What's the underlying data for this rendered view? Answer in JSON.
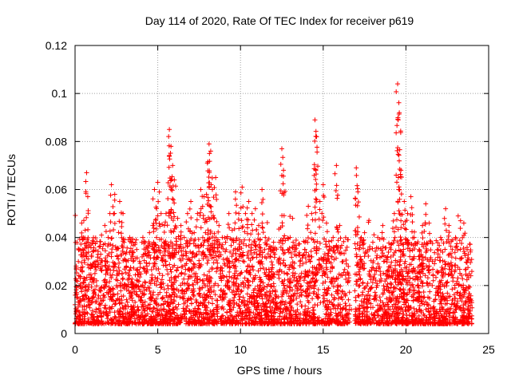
{
  "chart_data": {
    "type": "scatter",
    "title": "Day 114 of 2020, Rate Of TEC Index for receiver p619",
    "xlabel": "GPS time / hours",
    "ylabel": "ROTI / TECUs",
    "xlim": [
      0,
      25
    ],
    "ylim": [
      0,
      0.12
    ],
    "xticks": [
      "0",
      "5",
      "10",
      "15",
      "20",
      "25"
    ],
    "yticks": [
      "0",
      "0.02",
      "0.04",
      "0.06",
      "0.08",
      "0.1",
      "0.12"
    ],
    "grid": true,
    "marker": "+",
    "series_color": "#ff0000",
    "series": [
      {
        "name": "ROTI",
        "x": [
          0.0,
          0.2,
          0.4,
          0.5,
          0.7,
          0.8,
          1.0,
          1.2,
          1.4,
          1.6,
          1.8,
          2.0,
          2.2,
          2.4,
          2.5,
          2.7,
          2.9,
          3.1,
          3.3,
          3.5,
          3.7,
          3.9,
          4.1,
          4.3,
          4.5,
          4.7,
          4.8,
          5.0,
          5.2,
          5.4,
          5.5,
          5.7,
          5.8,
          5.9,
          6.0,
          6.2,
          6.4,
          6.6,
          6.8,
          7.0,
          7.2,
          7.4,
          7.6,
          7.8,
          8.0,
          8.1,
          8.2,
          8.3,
          8.5,
          8.7,
          8.9,
          9.1,
          9.3,
          9.5,
          9.7,
          9.9,
          10.1,
          10.3,
          10.5,
          10.7,
          10.9,
          11.1,
          11.3,
          11.5,
          11.8,
          12.0,
          12.3,
          12.5,
          12.6,
          12.8,
          13.0,
          13.3,
          13.6,
          13.9,
          14.1,
          14.3,
          14.5,
          14.6,
          14.8,
          15.0,
          15.2,
          15.4,
          15.6,
          15.8,
          16.0,
          16.2,
          16.5,
          16.7,
          17.0,
          17.1,
          17.3,
          17.5,
          17.8,
          18.0,
          18.3,
          18.6,
          18.9,
          19.1,
          19.3,
          19.5,
          19.6,
          19.7,
          19.9,
          20.1,
          20.3,
          20.5,
          20.8,
          21.0,
          21.2,
          21.4,
          21.6,
          21.9,
          22.1,
          22.4,
          22.6,
          22.8,
          23.0,
          23.3,
          23.5,
          23.7,
          23.9,
          0.1,
          0.3,
          0.6,
          0.9,
          1.3,
          1.7,
          2.1,
          2.6,
          3.0,
          3.4,
          3.8,
          4.2,
          4.6,
          5.1,
          5.6,
          6.1,
          6.5,
          6.9,
          7.3,
          7.7,
          8.0,
          8.4,
          8.8,
          9.2,
          9.6,
          10.0,
          10.4,
          10.8,
          11.2,
          11.6,
          12.1,
          12.7,
          13.2,
          13.7,
          14.2,
          14.7,
          15.3,
          15.9,
          16.4,
          17.2,
          17.7,
          18.2,
          18.7,
          19.2,
          19.8,
          20.2,
          20.7,
          21.3,
          21.8,
          22.3,
          22.9,
          23.4,
          23.8
        ],
        "y": [
          0.012,
          0.03,
          0.046,
          0.04,
          0.067,
          0.038,
          0.032,
          0.025,
          0.028,
          0.041,
          0.045,
          0.04,
          0.062,
          0.058,
          0.035,
          0.055,
          0.05,
          0.03,
          0.04,
          0.038,
          0.039,
          0.03,
          0.04,
          0.036,
          0.042,
          0.045,
          0.06,
          0.063,
          0.05,
          0.045,
          0.05,
          0.085,
          0.078,
          0.07,
          0.064,
          0.048,
          0.045,
          0.04,
          0.05,
          0.055,
          0.042,
          0.05,
          0.06,
          0.057,
          0.071,
          0.079,
          0.076,
          0.06,
          0.065,
          0.045,
          0.04,
          0.038,
          0.05,
          0.043,
          0.059,
          0.05,
          0.061,
          0.05,
          0.055,
          0.05,
          0.052,
          0.045,
          0.06,
          0.04,
          0.035,
          0.038,
          0.03,
          0.077,
          0.068,
          0.025,
          0.04,
          0.035,
          0.03,
          0.038,
          0.053,
          0.05,
          0.089,
          0.082,
          0.055,
          0.062,
          0.046,
          0.035,
          0.04,
          0.07,
          0.045,
          0.03,
          0.025,
          0.01,
          0.069,
          0.059,
          0.04,
          0.042,
          0.035,
          0.038,
          0.04,
          0.045,
          0.032,
          0.035,
          0.05,
          0.104,
          0.092,
          0.068,
          0.055,
          0.05,
          0.057,
          0.04,
          0.035,
          0.045,
          0.054,
          0.046,
          0.03,
          0.035,
          0.04,
          0.052,
          0.045,
          0.035,
          0.04,
          0.047,
          0.046,
          0.035,
          0.034,
          0.015,
          0.02,
          0.018,
          0.012,
          0.022,
          0.016,
          0.018,
          0.014,
          0.02,
          0.016,
          0.022,
          0.018,
          0.015,
          0.025,
          0.02,
          0.022,
          0.018,
          0.02,
          0.025,
          0.022,
          0.024,
          0.02,
          0.018,
          0.022,
          0.02,
          0.025,
          0.022,
          0.018,
          0.02,
          0.016,
          0.012,
          0.018,
          0.014,
          0.016,
          0.02,
          0.015,
          0.018,
          0.012,
          0.01,
          0.02,
          0.016,
          0.014,
          0.018,
          0.016,
          0.015,
          0.018,
          0.014,
          0.012,
          0.016,
          0.014,
          0.012,
          0.015,
          0.014
        ]
      }
    ]
  }
}
